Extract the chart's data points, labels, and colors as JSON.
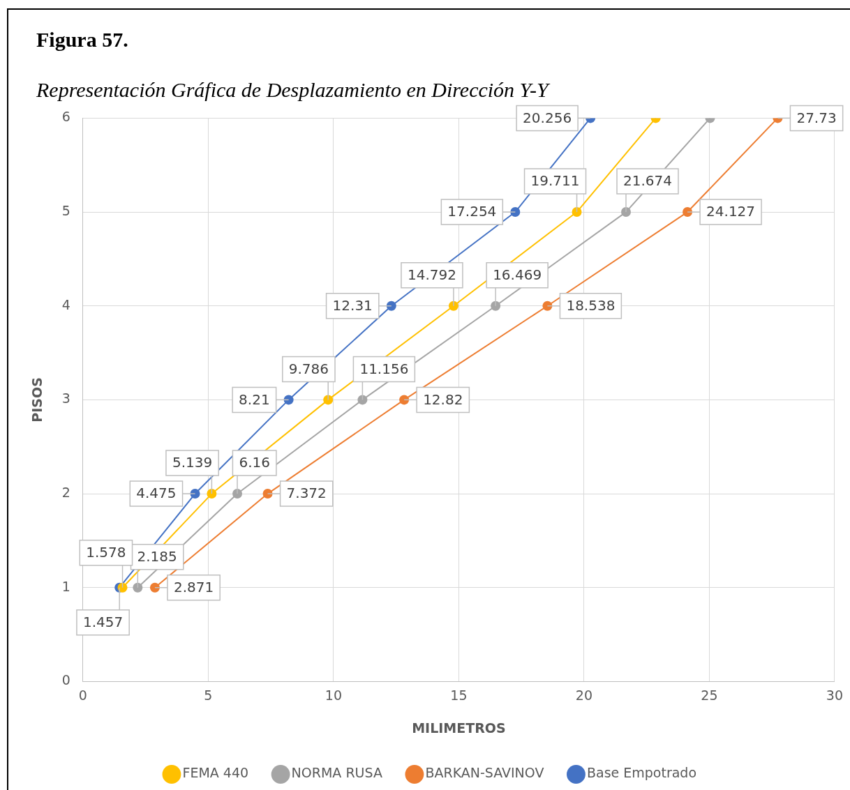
{
  "chart_data": {
    "type": "line",
    "title": "Figura 57.",
    "subtitle": "Representación Gráfica de Desplazamiento en Dirección Y-Y",
    "xlabel": "MILIMETROS",
    "ylabel": "PISOS",
    "xlim": [
      0,
      30
    ],
    "xticks": [
      0,
      5,
      10,
      15,
      20,
      25,
      30
    ],
    "ylim": [
      0,
      6
    ],
    "yticks": [
      0,
      1,
      2,
      3,
      4,
      5,
      6
    ],
    "grid": true,
    "legend": "bottom",
    "marker": "circle",
    "series": [
      {
        "name": "Base Empotrado",
        "color": "#4472c4",
        "x": [
          1.457,
          4.475,
          8.21,
          12.31,
          17.254,
          20.256
        ],
        "values": [
          1,
          2,
          3,
          4,
          5,
          6
        ]
      },
      {
        "name": "BARKAN-SAVINOV",
        "color": "#ed7d31",
        "x": [
          2.871,
          7.372,
          12.82,
          18.538,
          24.127,
          27.73
        ],
        "values": [
          1,
          2,
          3,
          4,
          5,
          6
        ]
      },
      {
        "name": "NORMA RUSA",
        "color": "#a5a5a5",
        "x": [
          2.185,
          6.16,
          11.156,
          16.469,
          21.674,
          25.03
        ],
        "values": [
          1,
          2,
          3,
          4,
          5,
          6
        ]
      },
      {
        "name": "FEMA 440",
        "color": "#ffc000",
        "x": [
          1.578,
          5.139,
          9.786,
          14.792,
          19.711,
          22.86
        ],
        "values": [
          1,
          2,
          3,
          4,
          5,
          6
        ]
      }
    ],
    "annotations": [
      {
        "text": "1.457",
        "x": 1.457,
        "y": 1
      },
      {
        "text": "4.475",
        "x": 4.475,
        "y": 2
      },
      {
        "text": "8.21",
        "x": 8.21,
        "y": 3
      },
      {
        "text": "12.31",
        "x": 12.31,
        "y": 4
      },
      {
        "text": "17.254",
        "x": 17.254,
        "y": 5
      },
      {
        "text": "20.256",
        "x": 20.256,
        "y": 6
      },
      {
        "text": "2.871",
        "x": 2.871,
        "y": 1
      },
      {
        "text": "7.372",
        "x": 7.372,
        "y": 2
      },
      {
        "text": "12.82",
        "x": 12.82,
        "y": 3
      },
      {
        "text": "18.538",
        "x": 18.538,
        "y": 4
      },
      {
        "text": "24.127",
        "x": 24.127,
        "y": 5
      },
      {
        "text": "27.73",
        "x": 27.73,
        "y": 6
      },
      {
        "text": "2.185",
        "x": 2.185,
        "y": 1
      },
      {
        "text": "6.16",
        "x": 6.16,
        "y": 2
      },
      {
        "text": "11.156",
        "x": 11.156,
        "y": 3
      },
      {
        "text": "16.469",
        "x": 16.469,
        "y": 4
      },
      {
        "text": "21.674",
        "x": 21.674,
        "y": 5
      },
      {
        "text": "1.578",
        "x": 1.578,
        "y": 1
      },
      {
        "text": "5.139",
        "x": 5.139,
        "y": 2
      },
      {
        "text": "9.786",
        "x": 9.786,
        "y": 3
      },
      {
        "text": "14.792",
        "x": 14.792,
        "y": 4
      },
      {
        "text": "19.711",
        "x": 19.711,
        "y": 5
      }
    ]
  }
}
